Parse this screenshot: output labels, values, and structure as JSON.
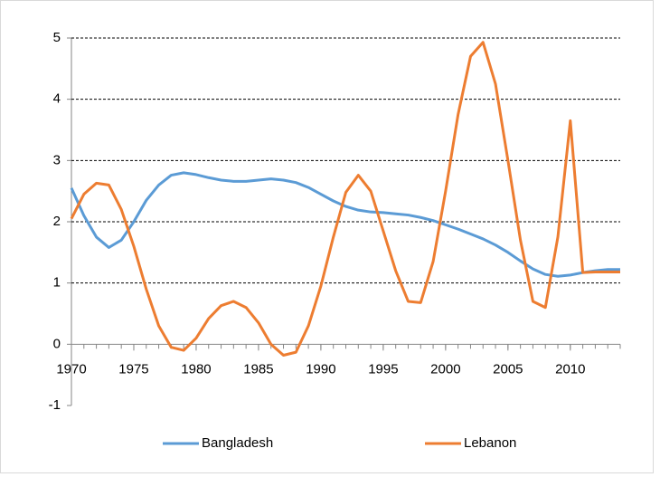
{
  "chart_data": {
    "type": "line",
    "x": [
      1970,
      1971,
      1972,
      1973,
      1974,
      1975,
      1976,
      1977,
      1978,
      1979,
      1980,
      1981,
      1982,
      1983,
      1984,
      1985,
      1986,
      1987,
      1988,
      1989,
      1990,
      1991,
      1992,
      1993,
      1994,
      1995,
      1996,
      1997,
      1998,
      1999,
      2000,
      2001,
      2002,
      2003,
      2004,
      2005,
      2006,
      2007,
      2008,
      2009,
      2010,
      2011,
      2012,
      2013,
      2014
    ],
    "series": [
      {
        "name": "Bangladesh",
        "color": "#5b9bd5",
        "values": [
          2.55,
          2.1,
          1.75,
          1.58,
          1.7,
          2.0,
          2.35,
          2.6,
          2.76,
          2.8,
          2.77,
          2.72,
          2.68,
          2.66,
          2.66,
          2.68,
          2.7,
          2.68,
          2.64,
          2.56,
          2.45,
          2.34,
          2.25,
          2.19,
          2.16,
          2.15,
          2.13,
          2.11,
          2.07,
          2.02,
          1.95,
          1.88,
          1.8,
          1.72,
          1.62,
          1.5,
          1.36,
          1.23,
          1.14,
          1.11,
          1.13,
          1.17,
          1.2,
          1.22,
          1.22
        ]
      },
      {
        "name": "Lebanon",
        "color": "#ed7d31",
        "values": [
          2.05,
          2.45,
          2.63,
          2.6,
          2.2,
          1.6,
          0.9,
          0.3,
          -0.05,
          -0.1,
          0.1,
          0.42,
          0.63,
          0.7,
          0.6,
          0.35,
          0.0,
          -0.18,
          -0.13,
          0.3,
          0.95,
          1.75,
          2.48,
          2.76,
          2.5,
          1.85,
          1.2,
          0.7,
          0.68,
          1.35,
          2.5,
          3.75,
          4.7,
          4.93,
          4.25,
          3.0,
          1.7,
          0.7,
          0.6,
          1.75,
          3.65,
          1.17,
          1.18,
          1.18,
          1.18
        ]
      }
    ],
    "xlim": [
      1970,
      2014
    ],
    "xticks": [
      1970,
      1975,
      1980,
      1985,
      1990,
      1995,
      2000,
      2005,
      2010
    ],
    "ylim": [
      -1,
      5
    ],
    "yticks": [
      -1,
      0,
      1,
      2,
      3,
      4,
      5
    ],
    "grid": true,
    "legend": "bottom"
  }
}
